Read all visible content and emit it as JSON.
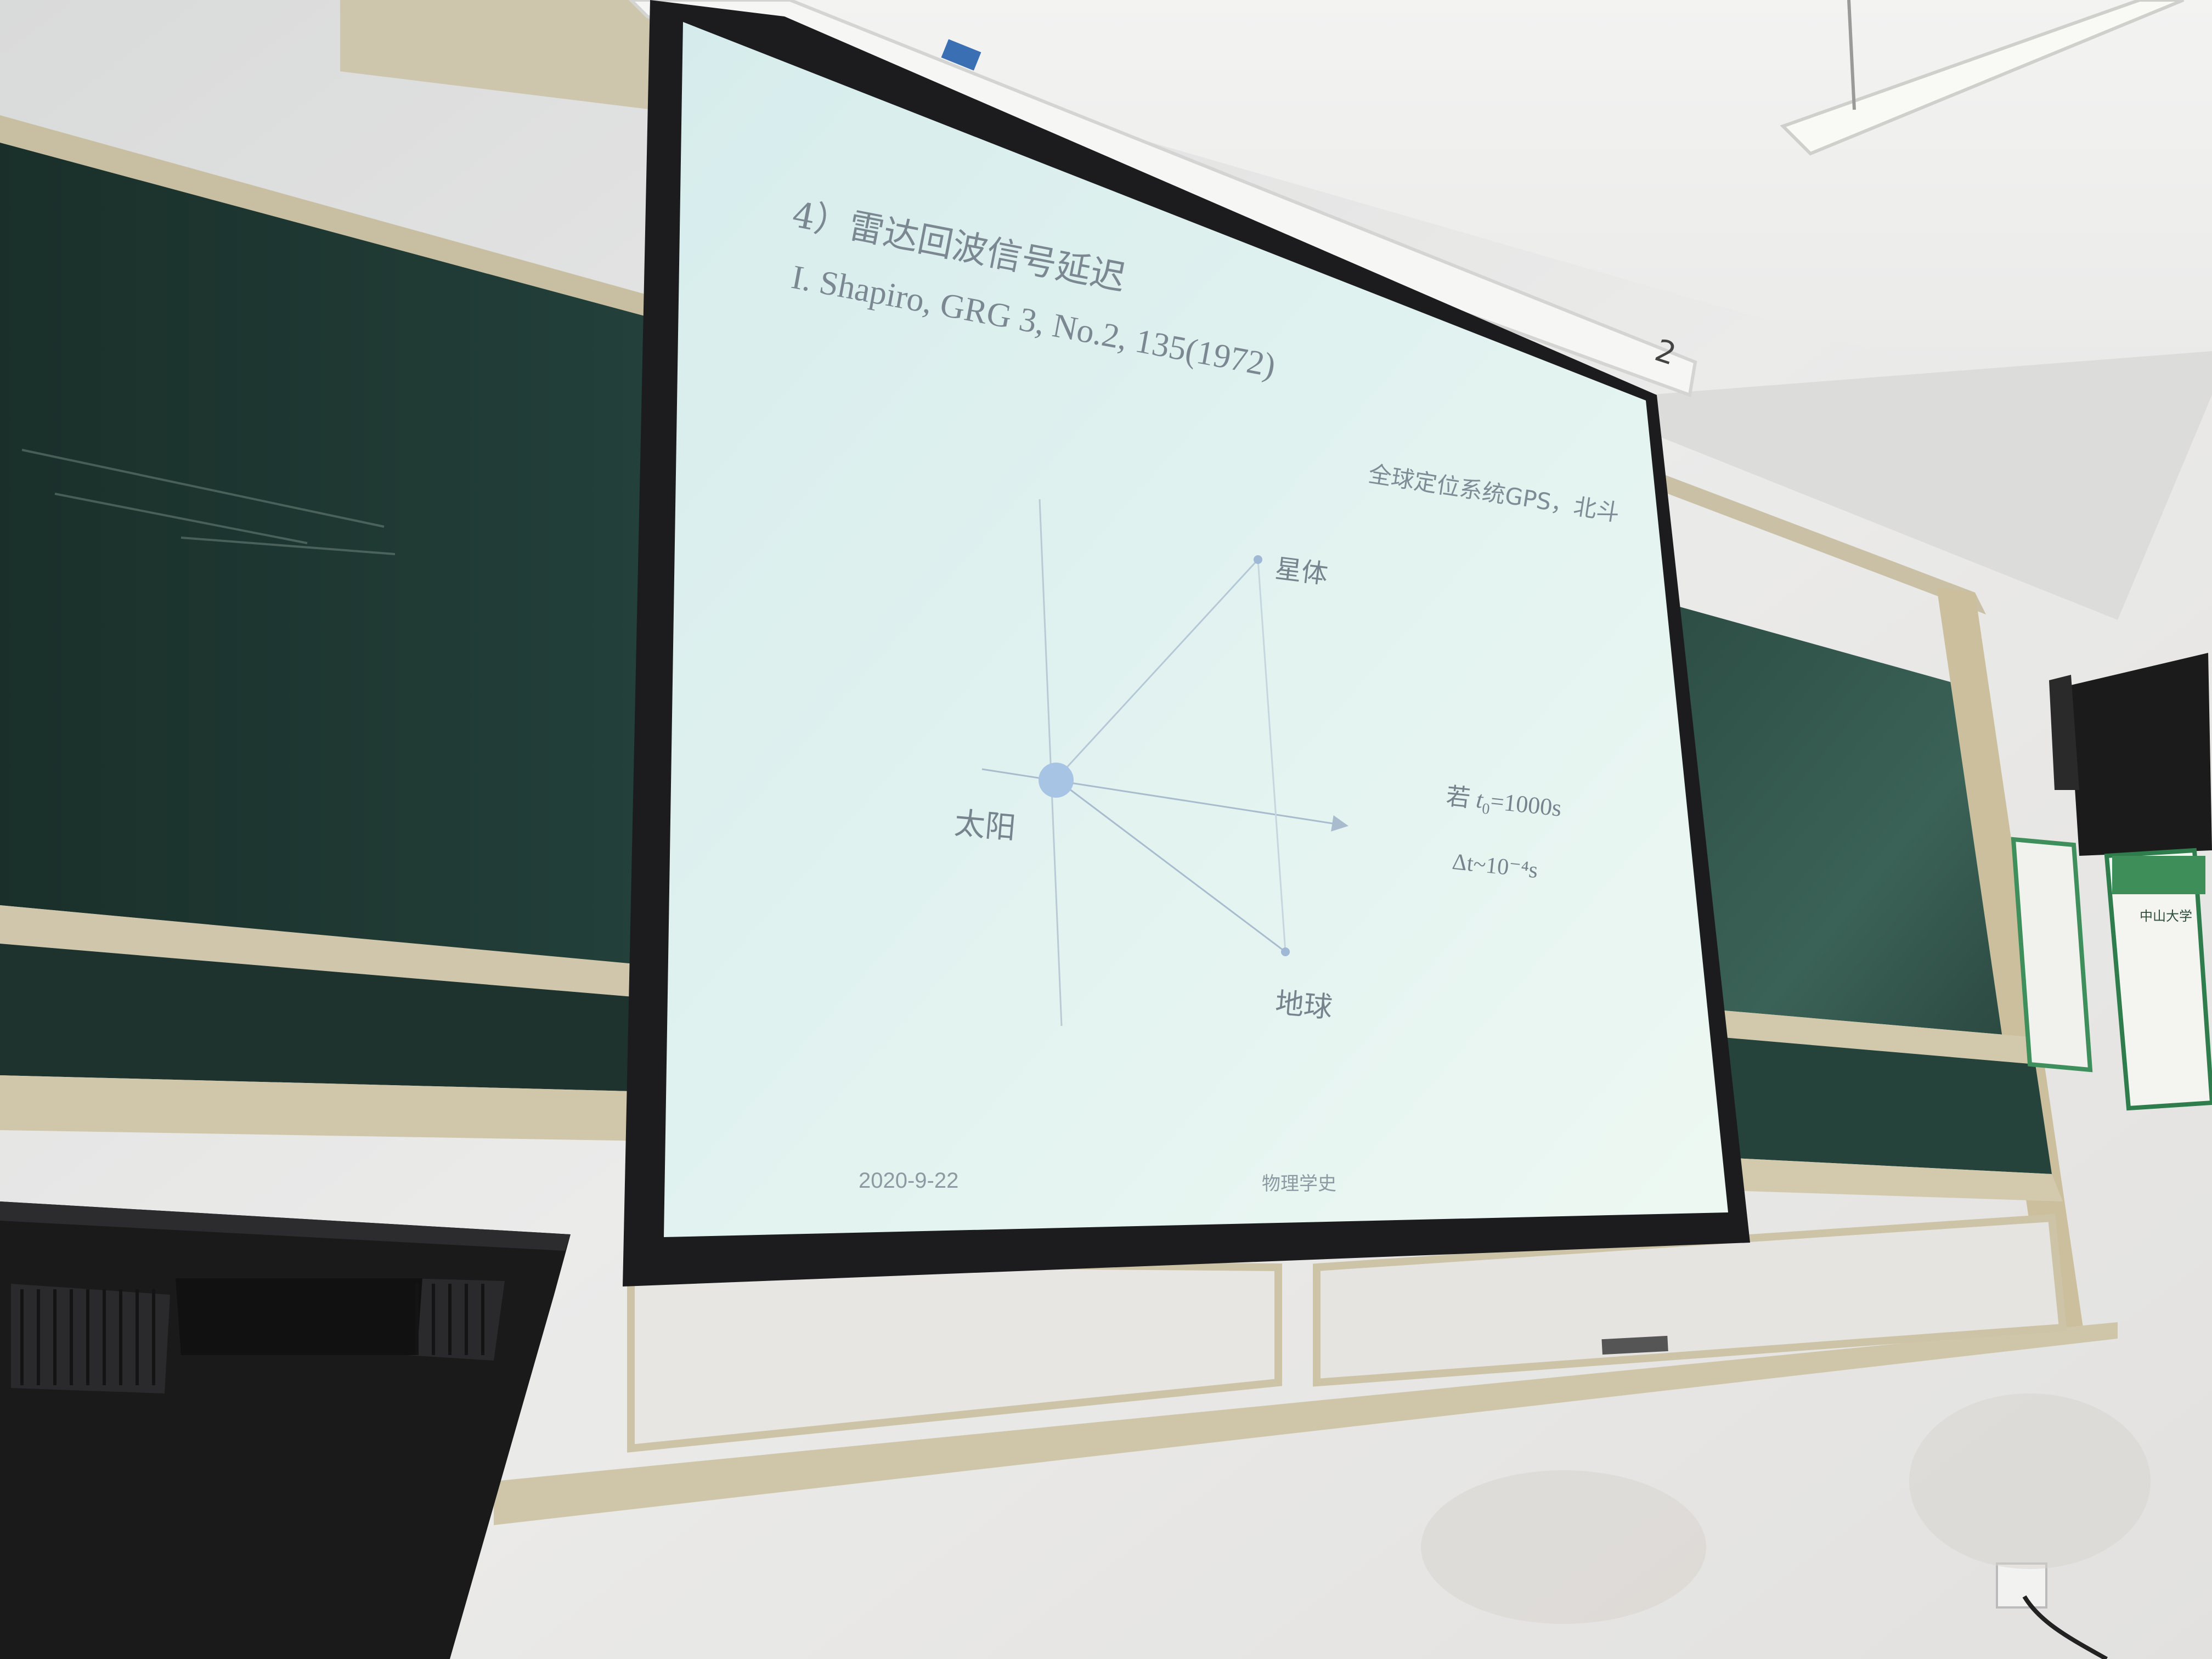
{
  "slide": {
    "heading": "4）雷达回波信号延迟",
    "reference": "I. Shapiro, GRG 3, No.2, 135(1972)",
    "note": "全球定位系统GPS，北斗",
    "labels": {
      "star": "星体",
      "sun": "太阳",
      "earth": "地球"
    },
    "equation_prefix": "若 ",
    "equation_var": "t",
    "equation_sub": "0",
    "equation_rest": "=1000s",
    "delta_t": "Δt~10⁻⁴s",
    "footer_date": "2020-9-22",
    "footer_course": "物理学史"
  },
  "screen_tag": "2",
  "poster_title": "中山大学",
  "colors": {
    "screen": "#dcefee",
    "chalkboard": "#1f3530",
    "wall": "#e6e6e4",
    "sun_dot": "#a8c4e4",
    "slide_text": "#7c8a93"
  }
}
